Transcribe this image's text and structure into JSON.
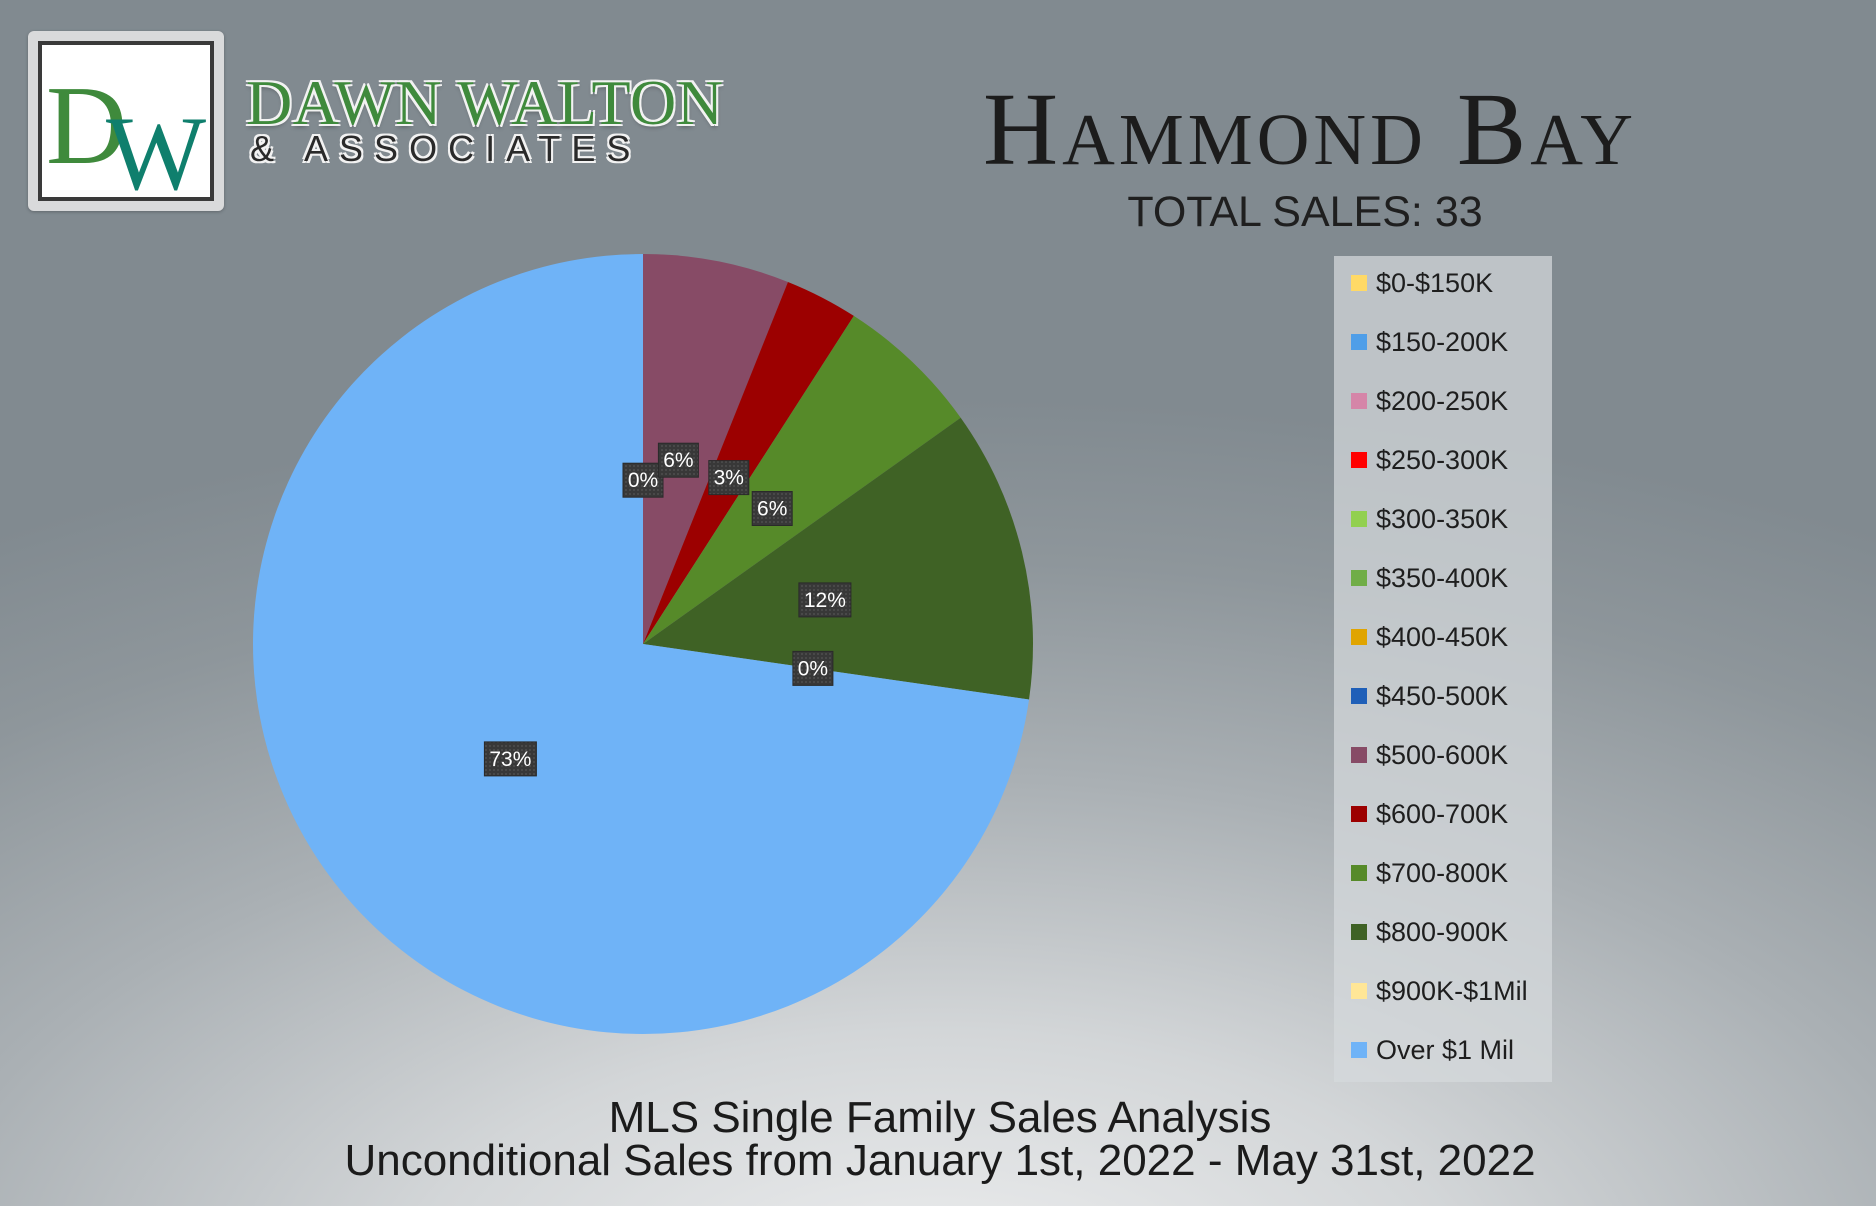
{
  "logo": {
    "monogram": "DW",
    "name": "DAWN WALTON",
    "tagline": "& ASSOCIATES"
  },
  "header": {
    "title": "Hammond Bay",
    "subtitle": "TOTAL SALES: 33"
  },
  "footer": {
    "line1": "MLS Single Family Sales Analysis",
    "line2": "Unconditional Sales from January 1st, 2022 - May 31st, 2022"
  },
  "chart_data": {
    "type": "pie",
    "title": "Hammond Bay",
    "subtitle": "TOTAL SALES: 33",
    "legend_position": "right",
    "start_angle_deg": 0,
    "direction": "clockwise",
    "categories": [
      "$0-$150K",
      "$150-200K",
      "$200-250K",
      "$250-300K",
      "$300-350K",
      "$350-400K",
      "$400-450K",
      "$450-500K",
      "$500-600K",
      "$600-700K",
      "$700-800K",
      "$800-900K",
      "$900K-$1Mil",
      "Over $1 Mil"
    ],
    "values": [
      0,
      0,
      0,
      0,
      0,
      0,
      0,
      0,
      2,
      1,
      2,
      4,
      0,
      24
    ],
    "colors": [
      "#ffd966",
      "#4f9ee8",
      "#d585a8",
      "#ff0000",
      "#92d050",
      "#70ad47",
      "#e0a400",
      "#1f5fb8",
      "#874b66",
      "#9c0000",
      "#568a29",
      "#3f6225",
      "#ffe697",
      "#6fb3f7"
    ],
    "data_labels": [
      {
        "text": "0%",
        "category": "$0-$150K"
      },
      {
        "text": "6%",
        "category": "$500-600K"
      },
      {
        "text": "3%",
        "category": "$600-700K"
      },
      {
        "text": "6%",
        "category": "$700-800K"
      },
      {
        "text": "12%",
        "category": "$800-900K"
      },
      {
        "text": "0%",
        "category": "$900K-$1Mil"
      },
      {
        "text": "73%",
        "category": "Over $1 Mil"
      }
    ]
  }
}
